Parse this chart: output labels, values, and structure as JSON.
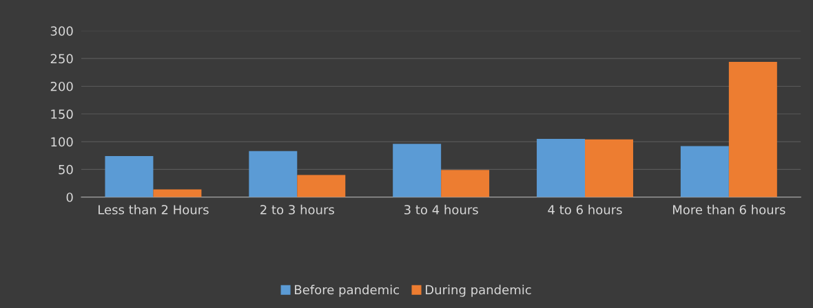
{
  "chart_data": {
    "type": "bar",
    "categories": [
      "Less than 2 Hours",
      "2 to 3 hours",
      "3 to 4 hours",
      "4 to 6 hours",
      "More than 6 hours"
    ],
    "series": [
      {
        "name": "Before pandemic",
        "color": "#5b9bd5",
        "values": [
          74,
          83,
          96,
          105,
          92
        ]
      },
      {
        "name": "During pandemic",
        "color": "#ed7d31",
        "values": [
          14,
          40,
          49,
          104,
          244
        ]
      }
    ],
    "ylim": [
      0,
      300
    ],
    "yticks": [
      0,
      50,
      100,
      150,
      200,
      250,
      300
    ],
    "grid": "y",
    "legend": "bottom"
  }
}
